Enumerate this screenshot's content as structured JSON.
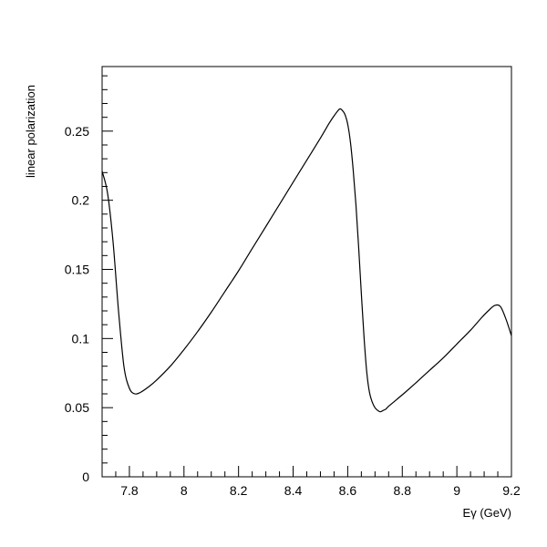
{
  "chart_data": {
    "type": "line",
    "title": "",
    "xlabel": "Eγ (GeV)",
    "ylabel": "linear polarization",
    "xlim": [
      7.7,
      9.2
    ],
    "ylim": [
      0,
      0.2967
    ],
    "grid": false,
    "legend": "none",
    "x_ticks": [
      7.8,
      8.0,
      8.2,
      8.4,
      8.6,
      8.8,
      9.0,
      9.2
    ],
    "x_tick_labels": [
      "7.8",
      "8",
      "8.2",
      "8.4",
      "8.6",
      "8.8",
      "9",
      "9.2"
    ],
    "y_ticks": [
      0,
      0.05,
      0.1,
      0.15,
      0.2,
      0.25
    ],
    "y_tick_labels": [
      "0",
      "0.05",
      "0.1",
      "0.15",
      "0.2",
      "0.25"
    ],
    "series": [
      {
        "color": "#000000",
        "x": [
          7.7,
          7.72,
          7.74,
          7.76,
          7.78,
          7.8,
          7.82,
          7.84,
          7.87,
          7.9,
          7.95,
          8.0,
          8.05,
          8.1,
          8.15,
          8.2,
          8.25,
          8.3,
          8.35,
          8.4,
          8.45,
          8.5,
          8.53,
          8.55,
          8.57,
          8.58,
          8.59,
          8.6,
          8.61,
          8.62,
          8.63,
          8.64,
          8.65,
          8.66,
          8.67,
          8.68,
          8.69,
          8.7,
          8.71,
          8.72,
          8.73,
          8.74,
          8.75,
          8.78,
          8.81,
          8.85,
          8.9,
          8.95,
          9.0,
          9.05,
          9.09,
          9.12,
          9.14,
          9.16,
          9.18,
          9.2
        ],
        "y": [
          0.221,
          0.205,
          0.17,
          0.12,
          0.08,
          0.064,
          0.06,
          0.061,
          0.065,
          0.07,
          0.08,
          0.092,
          0.105,
          0.119,
          0.134,
          0.149,
          0.165,
          0.181,
          0.197,
          0.213,
          0.229,
          0.245,
          0.255,
          0.261,
          0.266,
          0.265,
          0.262,
          0.255,
          0.242,
          0.222,
          0.197,
          0.166,
          0.132,
          0.1,
          0.075,
          0.061,
          0.054,
          0.05,
          0.048,
          0.047,
          0.048,
          0.049,
          0.051,
          0.056,
          0.061,
          0.068,
          0.077,
          0.086,
          0.096,
          0.106,
          0.115,
          0.121,
          0.124,
          0.123,
          0.114,
          0.102
        ]
      }
    ]
  }
}
